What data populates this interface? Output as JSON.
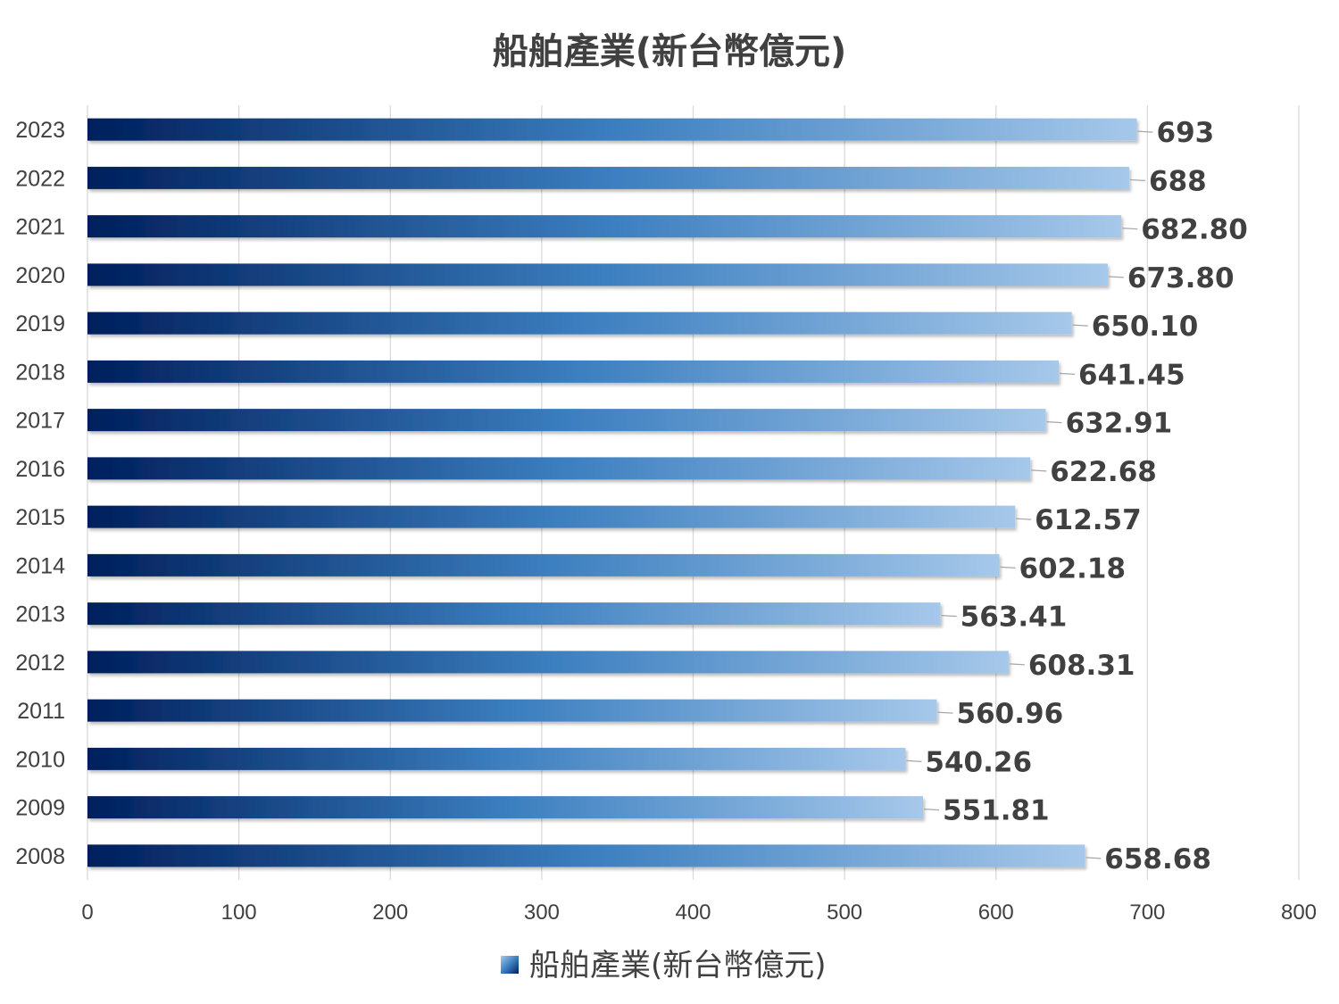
{
  "chart_data": {
    "type": "bar",
    "orientation": "horizontal",
    "title": "船舶產業(新台幣億元)",
    "categories": [
      "2023",
      "2022",
      "2021",
      "2020",
      "2019",
      "2018",
      "2017",
      "2016",
      "2015",
      "2014",
      "2013",
      "2012",
      "2011",
      "2010",
      "2009",
      "2008"
    ],
    "series": [
      {
        "name": "船舶產業(新台幣億元)",
        "values": [
          693,
          688,
          682.8,
          673.8,
          650.1,
          641.45,
          632.91,
          622.68,
          612.57,
          602.18,
          563.41,
          608.31,
          560.96,
          540.26,
          551.81,
          658.68
        ],
        "data_labels": [
          "693",
          "688",
          "682.80",
          "673.80",
          "650.10",
          "641.45",
          "632.91",
          "622.68",
          "612.57",
          "602.18",
          "563.41",
          "608.31",
          "560.96",
          "540.26",
          "551.81",
          "658.68"
        ],
        "gradient_colors": [
          "#001f5c",
          "#3b7ebf",
          "#a6c8ea"
        ]
      }
    ],
    "xlim": [
      0,
      800
    ],
    "x_ticks": [
      "0",
      "100",
      "200",
      "300",
      "400",
      "500",
      "600",
      "700",
      "800"
    ],
    "grid": true,
    "legend_position": "bottom",
    "text_color": "#404040"
  }
}
